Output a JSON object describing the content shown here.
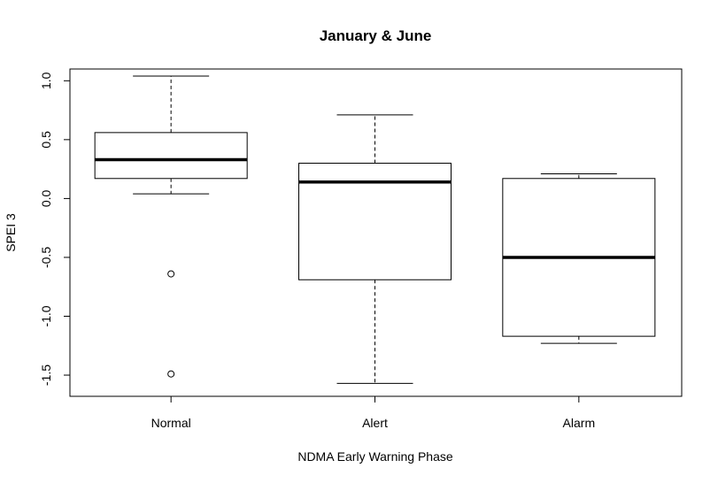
{
  "chart_data": {
    "type": "boxplot",
    "title": "January & June",
    "xlabel": "NDMA Early Warning Phase",
    "ylabel": "SPEI 3",
    "ylim": [
      -1.68,
      1.1
    ],
    "yticks": [
      -1.5,
      -1.0,
      -0.5,
      0.0,
      0.5,
      1.0
    ],
    "ytick_labels": [
      "-1.5",
      "-1.0",
      "-0.5",
      "0.0",
      "0.5",
      "1.0"
    ],
    "categories": [
      "Normal",
      "Alert",
      "Alarm"
    ],
    "boxes": [
      {
        "category": "Normal",
        "whisker_low": 0.04,
        "q1": 0.17,
        "median": 0.33,
        "q3": 0.56,
        "whisker_high": 1.04,
        "outliers": [
          -0.64,
          -1.49
        ]
      },
      {
        "category": "Alert",
        "whisker_low": -1.57,
        "q1": -0.69,
        "median": 0.14,
        "q3": 0.3,
        "whisker_high": 0.71,
        "outliers": []
      },
      {
        "category": "Alarm",
        "whisker_low": -1.23,
        "q1": -1.17,
        "median": -0.5,
        "q3": 0.17,
        "whisker_high": 0.21,
        "outliers": []
      }
    ],
    "grid": false,
    "colors": {
      "line": "#000000",
      "box_fill": "#ffffff"
    }
  }
}
